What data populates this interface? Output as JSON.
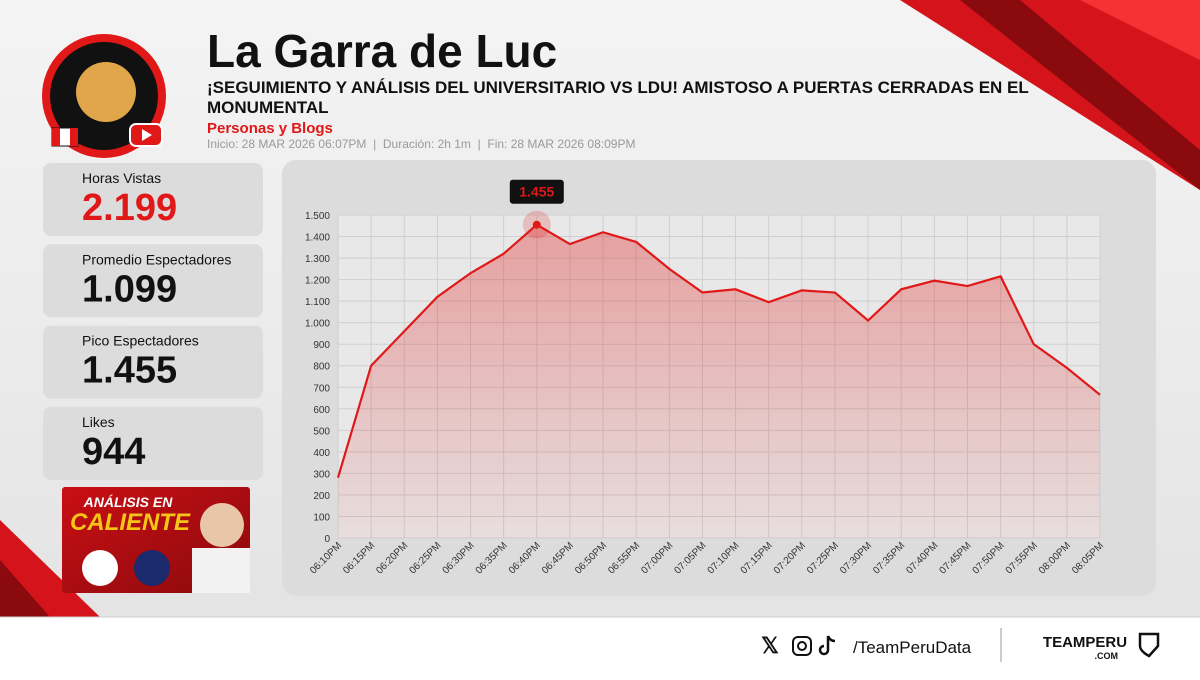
{
  "header": {
    "title": "La Garra de Luc",
    "subtitle_line1": "¡SEGUIMIENTO Y ANÁLISIS DEL UNIVERSITARIO VS LDU! AMISTOSO A PUERTAS CERRADAS EN EL",
    "subtitle_line2": "MONUMENTAL",
    "category": "Personas y Blogs",
    "info": "Inicio: 28 MAR 2026 06:07PM  |  Duración: 2h 1m  |  Fin: 28 MAR 2026 08:09PM"
  },
  "stats": [
    {
      "label": "Horas Vistas",
      "value": "2.199",
      "color": "#e01818"
    },
    {
      "label": "Promedio Espectadores",
      "value": "1.099",
      "color": "#111111"
    },
    {
      "label": "Pico Espectadores",
      "value": "1.455",
      "color": "#111111"
    },
    {
      "label": "Likes",
      "value": "944",
      "color": "#111111"
    }
  ],
  "thumbnail": {
    "line1": "ANÁLISIS EN",
    "line2": "CALIENTE"
  },
  "chart_data": {
    "type": "line",
    "color": "#e01818",
    "grid": true,
    "categories": [
      "06:10PM",
      "06:15PM",
      "06:20PM",
      "06:25PM",
      "06:30PM",
      "06:35PM",
      "06:40PM",
      "06:45PM",
      "06:50PM",
      "06:55PM",
      "07:00PM",
      "07:05PM",
      "07:10PM",
      "07:15PM",
      "07:20PM",
      "07:25PM",
      "07:30PM",
      "07:35PM",
      "07:40PM",
      "07:45PM",
      "07:50PM",
      "07:55PM",
      "08:00PM",
      "08:05PM"
    ],
    "values": [
      280,
      800,
      960,
      1120,
      1230,
      1320,
      1455,
      1365,
      1420,
      1375,
      1250,
      1140,
      1155,
      1095,
      1150,
      1140,
      1010,
      1155,
      1195,
      1170,
      1215,
      900,
      790,
      665
    ],
    "value_labels": [
      null,
      null,
      null,
      null,
      null,
      null,
      "1.455",
      null,
      null,
      null,
      null,
      null,
      null,
      null,
      null,
      null,
      null,
      null,
      null,
      null,
      null,
      null,
      null,
      null
    ],
    "ylim": [
      0,
      1500
    ],
    "yticks": [
      0,
      100,
      200,
      300,
      400,
      500,
      600,
      700,
      800,
      900,
      {
        "value": 1000,
        "label": "1.000"
      },
      {
        "value": 1100,
        "label": "1.100"
      },
      {
        "value": 1200,
        "label": "1.200"
      },
      {
        "value": 1300,
        "label": "1.300"
      },
      {
        "value": 1400,
        "label": "1.400"
      },
      {
        "value": 1500,
        "label": "1.500"
      }
    ]
  },
  "footer": {
    "handle": "/TeamPeruData",
    "brand": "TEAMPERU",
    "brand_sub": ".COM"
  }
}
